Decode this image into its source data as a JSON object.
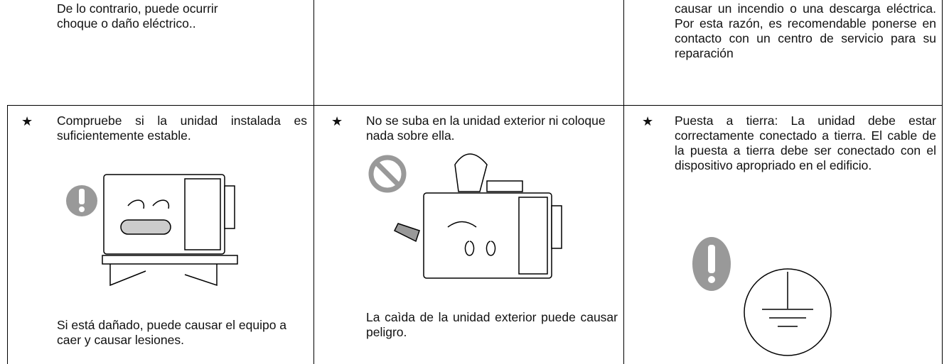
{
  "continued_row": {
    "left_lines": [
      "De lo contrario, puede ocurrir",
      "choque o daño eléctrico.."
    ],
    "right": "causar un incendio o una descarga eléctrica. Por esta razón, es recomendable ponerse en contacto con un centro de servicio para su reparación"
  },
  "items": [
    {
      "marker": "★",
      "text": "Compruebe si la unidad instalada es suficientemente estable.",
      "note": "Si está dañado, puede causar el equipo a caer y causar lesiones."
    },
    {
      "marker": "★",
      "text": "No se suba en la unidad exterior ni coloque nada sobre ella.",
      "note": "La caìda de la unidad exterior puede causar peligro."
    },
    {
      "marker": "★",
      "text": "Puesta a tierra: La unidad debe estar correctamente conectado a tierra. El cable de la puesta a tierra debe ser conectado con el dispositivo apropriado en el edificio."
    }
  ]
}
